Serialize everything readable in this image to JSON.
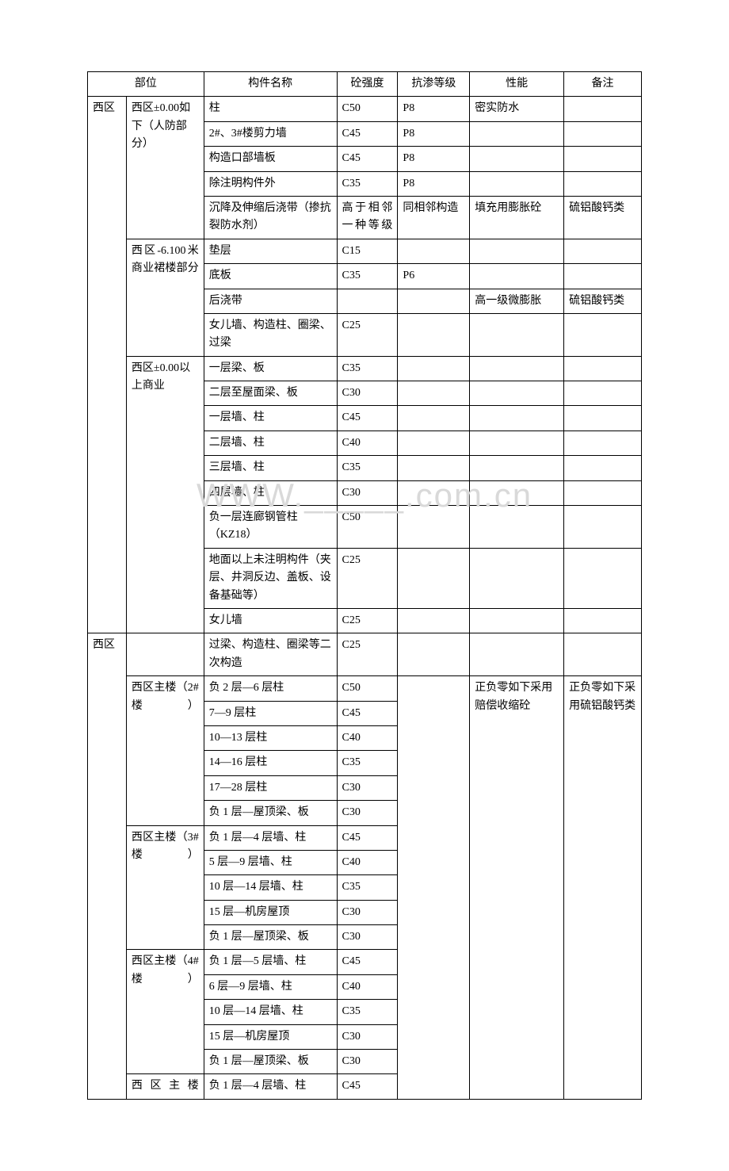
{
  "watermark": "WWW._____.com.cn",
  "headers": {
    "part": "部位",
    "component": "构件名称",
    "strength": "砼强度",
    "permeation": "抗渗等级",
    "performance": "性能",
    "note": "备注"
  },
  "r1": {
    "area": "西区",
    "part": "西区±0.00如下（人防部分）",
    "comp": "柱",
    "strength": "C50",
    "perm": "P8",
    "perf": "密实防水",
    "note": ""
  },
  "r2": {
    "comp": "2#、3#楼剪力墙",
    "strength": "C45",
    "perm": "P8"
  },
  "r3": {
    "comp": "构造口部墙板",
    "strength": "C45",
    "perm": "P8"
  },
  "r4": {
    "comp": "除注明构件外",
    "strength": "C35",
    "perm": "P8"
  },
  "r5": {
    "comp": "沉降及伸缩后浇带（掺抗裂防水剂）",
    "strength": "高于相邻一种等级",
    "perm": "同相邻构造",
    "perf": "填充用膨胀砼",
    "note": "硫铝酸钙类"
  },
  "r6": {
    "part": "西区-6.100米商业裙楼部分",
    "comp": "垫层",
    "strength": "C15",
    "perm": "",
    "perf": "",
    "note": ""
  },
  "r7": {
    "comp": "底板",
    "strength": "C35",
    "perm": "P6",
    "perf": "",
    "note": ""
  },
  "r8": {
    "comp": "后浇带",
    "strength": "",
    "perm": "",
    "perf": "高一级微膨胀",
    "note": "硫铝酸钙类"
  },
  "r9": {
    "comp": "女儿墙、构造柱、圈梁、过梁",
    "strength": "C25",
    "perm": "",
    "perf": "",
    "note": ""
  },
  "r10": {
    "part": "西区±0.00以上商业",
    "comp": "一层梁、板",
    "strength": "C35",
    "perm": "",
    "perf": "",
    "note": ""
  },
  "r11": {
    "comp": "二层至屋面梁、板",
    "strength": "C30"
  },
  "r12": {
    "comp": "一层墙、柱",
    "strength": "C45"
  },
  "r13": {
    "comp": "二层墙、柱",
    "strength": "C40"
  },
  "r14": {
    "comp": "三层墙、柱",
    "strength": "C35"
  },
  "r15": {
    "comp": "四层墙、柱",
    "strength": "C30"
  },
  "r16": {
    "comp": "负一层连廊钢管柱（KZ18）",
    "strength": "C50"
  },
  "r17": {
    "comp": "地面以上未注明构件（夹层、井洞反边、盖板、设备基础等）",
    "strength": "C25"
  },
  "r18": {
    "comp": "女儿墙",
    "strength": "C25"
  },
  "r19": {
    "area": "西区",
    "part": "",
    "comp": "过梁、构造柱、圈梁等二次构造",
    "strength": "C25",
    "perm": "",
    "perf": "",
    "note": ""
  },
  "r20": {
    "part": "西区主楼（2#楼）",
    "comp": "负 2 层—6 层柱",
    "strength": "C50",
    "perm": "",
    "perf": "正负零如下采用赔偿收缩砼",
    "note": "正负零如下采用硫铝酸钙类"
  },
  "r21": {
    "comp": "7—9 层柱",
    "strength": "C45"
  },
  "r22": {
    "comp": "10—13 层柱",
    "strength": "C40"
  },
  "r23": {
    "comp": "14—16 层柱",
    "strength": "C35"
  },
  "r24": {
    "comp": "17—28 层柱",
    "strength": "C30"
  },
  "r25": {
    "comp": "负 1 层—屋顶梁、板",
    "strength": "C30"
  },
  "r26": {
    "part": "西区主楼（3#楼）",
    "comp": "负 1 层—4 层墙、柱",
    "strength": "C45"
  },
  "r27": {
    "comp": "5 层—9 层墙、柱",
    "strength": "C40"
  },
  "r28": {
    "comp": "10 层—14 层墙、柱",
    "strength": "C35"
  },
  "r29": {
    "comp": "15 层—机房屋顶",
    "strength": "C30"
  },
  "r30": {
    "comp": "负 1 层—屋顶梁、板",
    "strength": "C30"
  },
  "r31": {
    "part": "西区主楼（4#楼）",
    "comp": "负 1 层—5 层墙、柱",
    "strength": "C45"
  },
  "r32": {
    "comp": "6 层—9 层墙、柱",
    "strength": "C40"
  },
  "r33": {
    "comp": "10 层—14 层墙、柱",
    "strength": "C35"
  },
  "r34": {
    "comp": "15 层—机房屋顶",
    "strength": "C30"
  },
  "r35": {
    "comp": "负 1 层—屋顶梁、板",
    "strength": "C30"
  },
  "r36": {
    "part": "西区主楼",
    "comp": "负 1 层—4 层墙、柱",
    "strength": "C45"
  }
}
